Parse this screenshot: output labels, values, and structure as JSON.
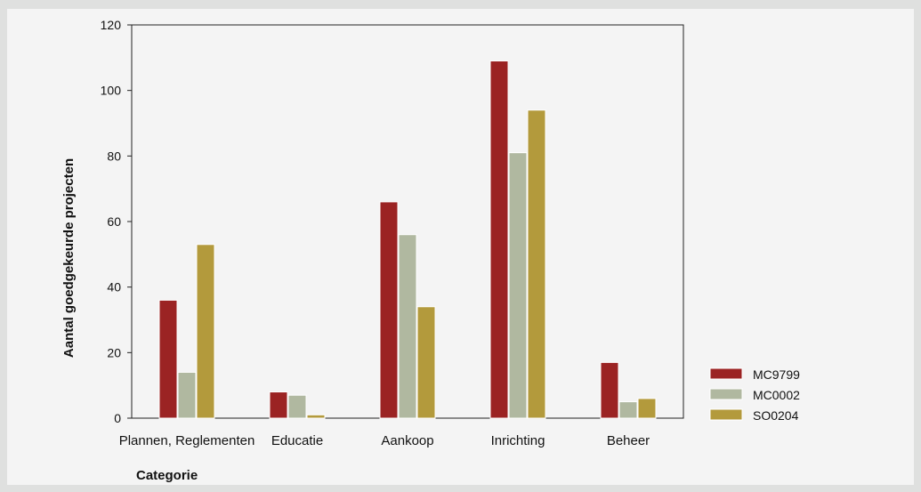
{
  "chart_data": {
    "type": "bar",
    "categories": [
      "Plannen, Reglementen",
      "Educatie",
      "Aankoop",
      "Inrichting",
      "Beheer"
    ],
    "series": [
      {
        "name": "MC9799",
        "color": "#9b2323",
        "values": [
          36,
          8,
          66,
          109,
          17
        ]
      },
      {
        "name": "MC0002",
        "color": "#b0b8a0",
        "values": [
          14,
          7,
          56,
          81,
          5
        ]
      },
      {
        "name": "SO0204",
        "color": "#b39a3c",
        "values": [
          53,
          1,
          34,
          94,
          6
        ]
      }
    ],
    "xlabel": "Categorie",
    "ylabel": "Aantal goedgekeurde projecten",
    "ylim": [
      0,
      120
    ],
    "yticks": [
      0,
      20,
      40,
      60,
      80,
      100,
      120
    ],
    "grid": false,
    "legend_position": "right-bottom"
  }
}
